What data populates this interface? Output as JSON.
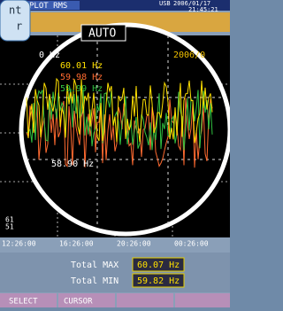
{
  "status_bar": {
    "mode": "PLOT RMS",
    "storage": "USB",
    "date": "2006/01/17",
    "time": "21:45:21"
  },
  "callout": {
    "lines": [
      "nt",
      "r"
    ]
  },
  "magnifier": {
    "range": "AUTO",
    "top_label": "0 Hz",
    "readings": [
      "60.01 Hz",
      "59.98 Hz",
      "59.99 Hz"
    ],
    "date": "2006/0",
    "bottom_label": "58.90 Hz"
  },
  "plot": {
    "y_min_label": "51",
    "y_low_label": "61",
    "x_labels": [
      "12:26:00",
      "16:26:00",
      "20:26:00",
      "00:26:00"
    ]
  },
  "summary": {
    "rows": [
      {
        "label": "Total MAX",
        "value": "60.07 Hz"
      },
      {
        "label": "Total MIN",
        "value": "59.82 Hz"
      }
    ]
  },
  "softkeys": [
    "SELECT",
    "CURSOR"
  ]
}
